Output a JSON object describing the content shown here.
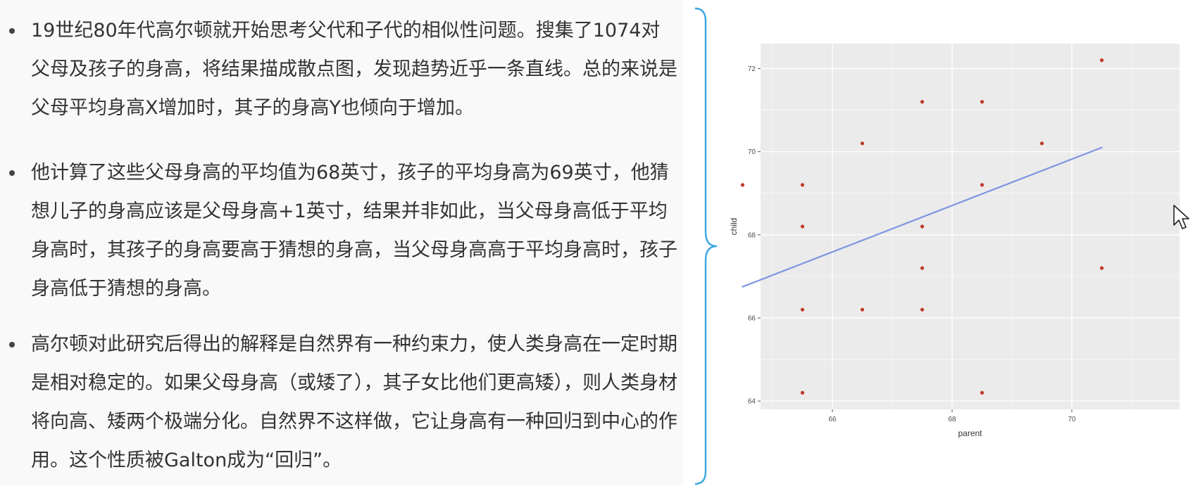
{
  "bullets": [
    "19世纪80年代高尔顿就开始思考父代和子代的相似性问题。搜集了1074对父母及孩子的身高，将结果描成散点图，发现趋势近乎一条直线。总的来说是父母平均身高X增加时，其子的身高Y也倾向于增加。",
    "他计算了这些父母身高的平均值为68英寸，孩子的平均身高为69英寸，他猜想儿子的身高应该是父母身高+1英寸，结果并非如此，当父母身高低于平均身高时，其孩子的身高要高于猜想的身高，当父母身高高于平均身高时，孩子身高低于猜想的身高。",
    "高尔顿对此研究后得出的解释是自然界有一种约束力，使人类身高在一定时期是相对稳定的。如果父母身高（或矮了），其子女比他们更高矮），则人类身材将向高、矮两个极端分化。自然界不这样做，它让身高有一种回归到中心的作用。这个性质被Galton成为“回归”。"
  ],
  "colors": {
    "brace": "#3aa6e0",
    "panel_bg": "#ebebeb",
    "grid": "#ffffff",
    "points": "#c0392b",
    "line": "#7f95e0"
  },
  "chart_data": {
    "type": "scatter",
    "title": "",
    "xlabel": "parent",
    "ylabel": "child",
    "xlim": [
      64.8,
      71.8
    ],
    "ylim": [
      63.8,
      72.6
    ],
    "xticks": [
      66,
      68,
      70
    ],
    "yticks": [
      64,
      66,
      68,
      70,
      72
    ],
    "grid": true,
    "points": [
      {
        "x": 64.5,
        "y": 69.2
      },
      {
        "x": 65.5,
        "y": 69.2
      },
      {
        "x": 65.5,
        "y": 68.2
      },
      {
        "x": 65.5,
        "y": 66.2
      },
      {
        "x": 65.5,
        "y": 64.2
      },
      {
        "x": 66.5,
        "y": 70.2
      },
      {
        "x": 66.5,
        "y": 66.2
      },
      {
        "x": 67.5,
        "y": 71.2
      },
      {
        "x": 67.5,
        "y": 68.2
      },
      {
        "x": 67.5,
        "y": 67.2
      },
      {
        "x": 67.5,
        "y": 66.2
      },
      {
        "x": 68.5,
        "y": 71.2
      },
      {
        "x": 68.5,
        "y": 69.2
      },
      {
        "x": 68.5,
        "y": 64.2
      },
      {
        "x": 69.5,
        "y": 70.2
      },
      {
        "x": 70.5,
        "y": 72.2
      },
      {
        "x": 70.5,
        "y": 67.2
      }
    ],
    "fit_line": {
      "x": [
        64.5,
        70.5
      ],
      "y": [
        66.75,
        70.1
      ]
    }
  }
}
